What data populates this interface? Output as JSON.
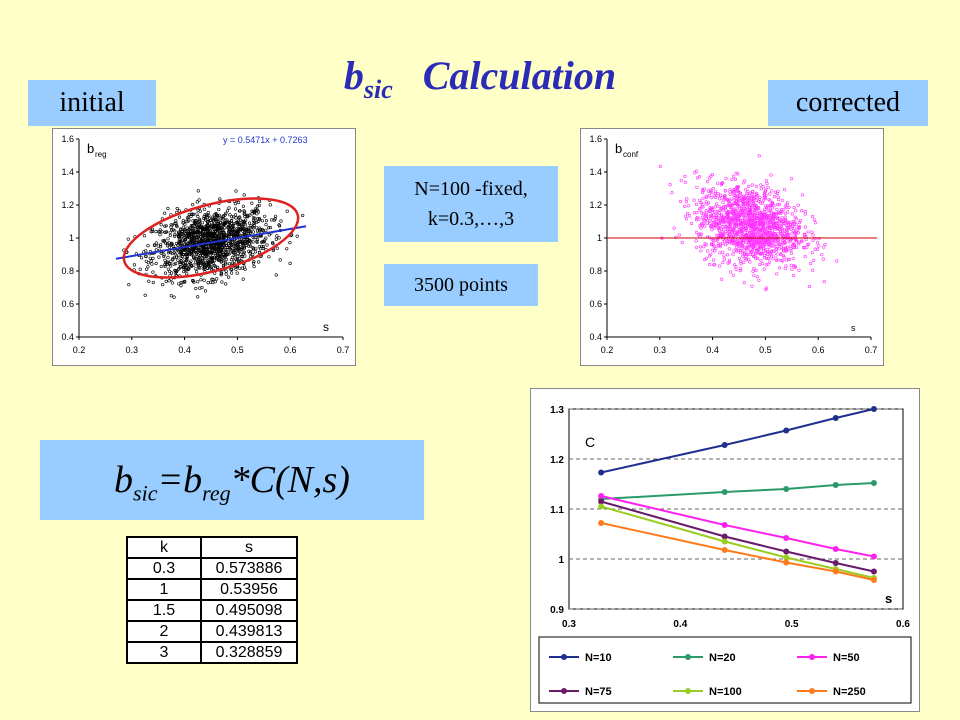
{
  "title": {
    "main": "b",
    "sub": "sic",
    "rest": "Calculation"
  },
  "labels": {
    "initial": "initial",
    "corrected": "corrected"
  },
  "info": {
    "line1": "N=100 -fixed,",
    "line2": "k=0.3,…,3",
    "points": "3500 points"
  },
  "formula": {
    "b": "b",
    "sic": "sic",
    "eq": "=b",
    "reg": "reg",
    "rest": "*C(N,s)"
  },
  "table": {
    "headers": [
      "k",
      "s"
    ],
    "rows": [
      [
        "0.3",
        "0.573886"
      ],
      [
        "1",
        "0.53956"
      ],
      [
        "1.5",
        "0.495098"
      ],
      [
        "2",
        "0.439813"
      ],
      [
        "3",
        "0.328859"
      ]
    ]
  },
  "chart_data": [
    {
      "type": "scatter",
      "ylabel": "b",
      "ylabel_sub": "reg",
      "xlabel": "s",
      "xticks": [
        "0.2",
        "0.3",
        "0.4",
        "0.5",
        "0.6",
        "0.7"
      ],
      "yticks": [
        "0.4",
        "0.6",
        "0.8",
        "1",
        "1.2",
        "1.4",
        "1.6"
      ],
      "xlim": [
        0.2,
        0.7
      ],
      "ylim": [
        0.4,
        1.6
      ],
      "point_color": "#000000",
      "points_note": "",
      "regression": {
        "label": "y = 0.5471x + 0.7263",
        "slope": 0.5471,
        "intercept": 0.7263,
        "x_range": [
          0.27,
          0.63
        ],
        "color": "#2233cc"
      },
      "ellipse": {
        "cx": 0.45,
        "cy": 1.0,
        "rx": 0.17,
        "ry": 0.2,
        "rotation_deg": -15,
        "color": "#dd2222"
      }
    },
    {
      "type": "scatter",
      "ylabel": "b",
      "ylabel_sub": "conf",
      "xlabel": "s",
      "xticks": [
        "0.2",
        "0.3",
        "0.4",
        "0.5",
        "0.6",
        "0.7"
      ],
      "yticks": [
        "0.4",
        "0.6",
        "0.8",
        "1",
        "1.2",
        "1.4",
        "1.6"
      ],
      "xlim": [
        0.2,
        0.7
      ],
      "ylim": [
        0.4,
        1.6
      ],
      "point_color": "#ff33ff",
      "reference_line": {
        "y": 1.0,
        "color": "#cc0000"
      }
    },
    {
      "type": "line",
      "ylabel": "C",
      "xlabel": "s",
      "xticks": [
        "0.3",
        "0.4",
        "0.5",
        "0.6"
      ],
      "yticks": [
        "0.9",
        "1",
        "1.1",
        "1.2",
        "1.3"
      ],
      "xlim": [
        0.3,
        0.6
      ],
      "ylim": [
        0.9,
        1.3
      ],
      "x": [
        0.328859,
        0.439813,
        0.495098,
        0.53956,
        0.573886
      ],
      "series": [
        {
          "name": "N=10",
          "color": "#1f2f8f",
          "values": [
            1.173,
            1.228,
            1.257,
            1.282,
            1.3
          ]
        },
        {
          "name": "N=20",
          "color": "#2a9a6a",
          "values": [
            1.12,
            1.134,
            1.14,
            1.148,
            1.152
          ]
        },
        {
          "name": "N=50",
          "color": "#ff22ee",
          "values": [
            1.126,
            1.068,
            1.042,
            1.02,
            1.005
          ]
        },
        {
          "name": "N=75",
          "color": "#6a1a6a",
          "values": [
            1.115,
            1.045,
            1.015,
            0.992,
            0.975
          ]
        },
        {
          "name": "N=100",
          "color": "#9acc22",
          "values": [
            1.105,
            1.035,
            1.003,
            0.98,
            0.962
          ]
        },
        {
          "name": "N=250",
          "color": "#ff7a1a",
          "values": [
            1.072,
            1.018,
            0.993,
            0.975,
            0.958
          ]
        }
      ]
    }
  ]
}
